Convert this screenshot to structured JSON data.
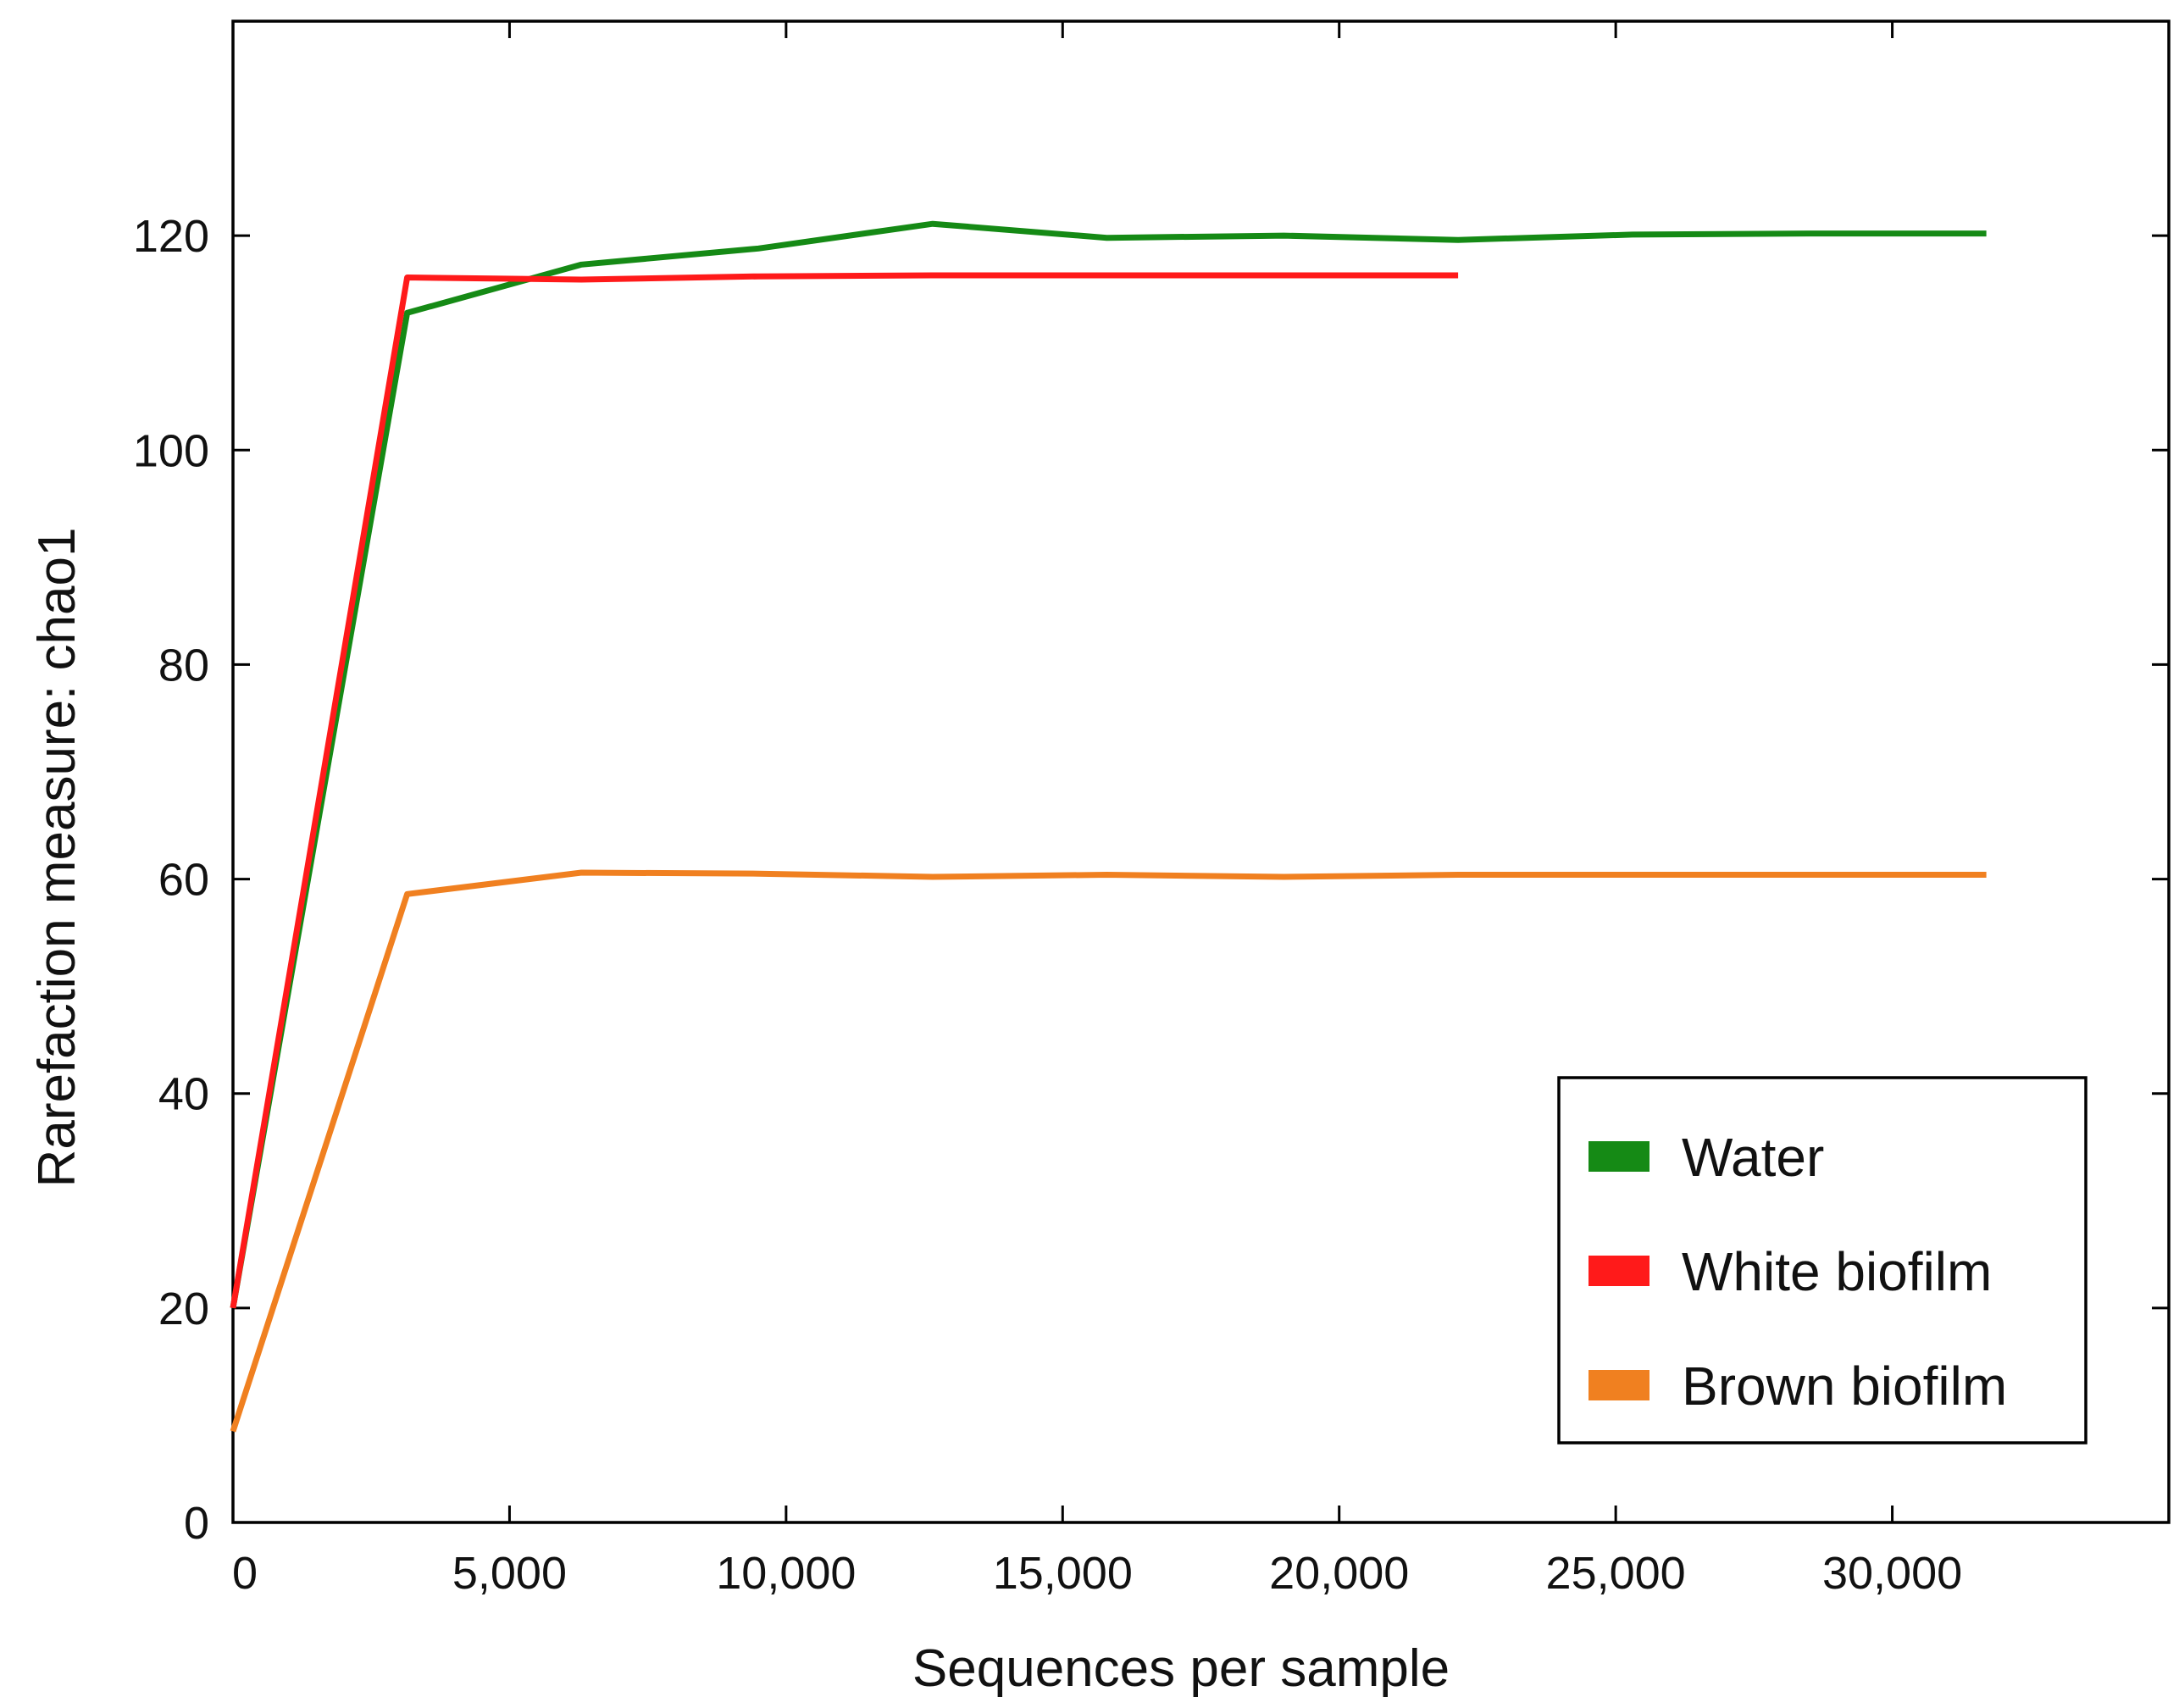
{
  "chart_data": {
    "type": "line",
    "xlabel": "Sequences per sample",
    "ylabel": "Rarefaction measure: chao1",
    "xlim": [
      0,
      35000
    ],
    "ylim": [
      0,
      140
    ],
    "xticks": [
      0,
      5000,
      10000,
      15000,
      20000,
      25000,
      30000
    ],
    "xtick_labels": [
      "0",
      "5,000",
      "10,000",
      "15,000",
      "20,000",
      "25,000",
      "30,000"
    ],
    "yticks": [
      0,
      20,
      40,
      60,
      80,
      100,
      120
    ],
    "ytick_labels": [
      "0",
      "20",
      "40",
      "60",
      "80",
      "100",
      "120"
    ],
    "grid": false,
    "legend_position": "bottom-right",
    "series": [
      {
        "name": "Water",
        "color": "#158a15",
        "x": [
          0,
          3150,
          6300,
          9500,
          12650,
          15800,
          19000,
          22150,
          25300,
          28500,
          31700
        ],
        "y": [
          20,
          112.8,
          117.3,
          118.8,
          121.1,
          119.8,
          120.0,
          119.6,
          120.1,
          120.2,
          120.2
        ]
      },
      {
        "name": "White biofilm",
        "color": "#ff1a1a",
        "x": [
          0,
          3150,
          6300,
          9500,
          12650,
          15800,
          19000,
          22150
        ],
        "y": [
          20,
          116.1,
          115.9,
          116.2,
          116.3,
          116.3,
          116.3,
          116.3
        ]
      },
      {
        "name": "Brown biofilm",
        "color": "#f08020",
        "x": [
          0,
          3150,
          6300,
          9500,
          12650,
          15800,
          19000,
          22150,
          25300,
          28500,
          31700
        ],
        "y": [
          8.5,
          58.6,
          60.6,
          60.5,
          60.2,
          60.4,
          60.2,
          60.4,
          60.4,
          60.4,
          60.4
        ]
      }
    ]
  }
}
